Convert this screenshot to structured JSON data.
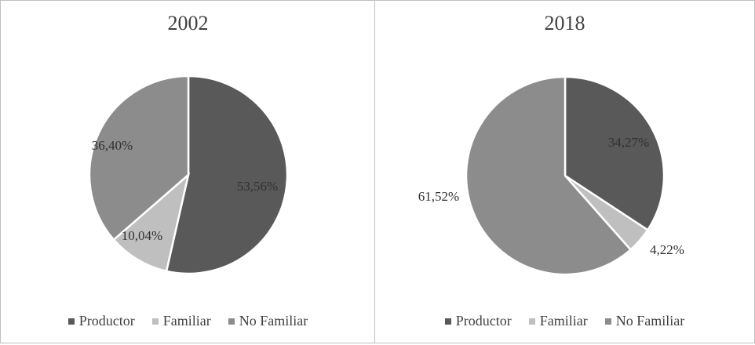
{
  "chart_data": [
    {
      "type": "pie",
      "title": "2002",
      "categories": [
        "Productor",
        "Familiar",
        "No Familiar"
      ],
      "values": [
        53.56,
        10.04,
        36.4
      ],
      "labels": [
        "53,56%",
        "10,04%",
        "36,40%"
      ],
      "colors": [
        "#595959",
        "#bfbfbf",
        "#8c8c8c"
      ],
      "legend": "bottom"
    },
    {
      "type": "pie",
      "title": "2018",
      "categories": [
        "Productor",
        "Familiar",
        "No Familiar"
      ],
      "values": [
        34.27,
        4.22,
        61.52
      ],
      "labels": [
        "34,27%",
        "4,22%",
        "61,52%"
      ],
      "colors": [
        "#595959",
        "#bfbfbf",
        "#8c8c8c"
      ],
      "legend": "bottom"
    }
  ]
}
